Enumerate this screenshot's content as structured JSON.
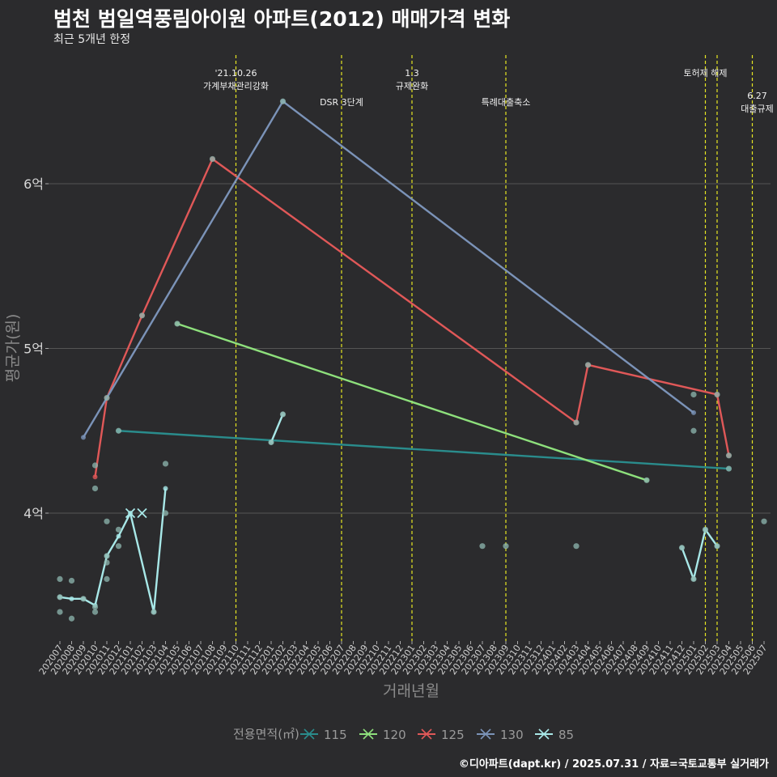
{
  "header": {
    "title": "범천 범일역풍림아이원 아파트(2012) 매매가격 변화",
    "subtitle": "최근 5개년 한정"
  },
  "footer": {
    "credit": "©디아파트(dapt.kr) / 2025.07.31 / 자료=국토교통부 실거래가"
  },
  "colors": {
    "background": "#2b2b2d",
    "grid": "#555555",
    "policy_line": "#e6e622",
    "s115": "#2a8c8c",
    "s120": "#8ee07c",
    "s125": "#e05858",
    "s130": "#7b93b8",
    "s85": "#a8e8e8",
    "scatter": "#8fb8b0"
  },
  "chart_data": {
    "type": "line",
    "title": "범천 범일역풍림아이원 아파트(2012) 매매가격 변화",
    "subtitle": "최근 5개년 한정",
    "xlabel": "거래년월",
    "ylabel": "평균가(원)",
    "ylim": [
      3.2,
      6.7
    ],
    "yticks": [
      4,
      5,
      6
    ],
    "ytick_labels": [
      "4억",
      "5억",
      "6억"
    ],
    "months": [
      "202007",
      "202008",
      "202009",
      "202010",
      "202011",
      "202012",
      "202101",
      "202102",
      "202103",
      "202104",
      "202105",
      "202106",
      "202107",
      "202108",
      "202109",
      "202110",
      "202111",
      "202112",
      "202201",
      "202202",
      "202203",
      "202204",
      "202205",
      "202206",
      "202207",
      "202208",
      "202209",
      "202210",
      "202211",
      "202212",
      "202301",
      "202302",
      "202303",
      "202304",
      "202305",
      "202306",
      "202307",
      "202308",
      "202309",
      "202310",
      "202311",
      "202312",
      "202401",
      "202402",
      "202403",
      "202404",
      "202405",
      "202406",
      "202407",
      "202408",
      "202409",
      "202410",
      "202411",
      "202412",
      "202501",
      "202502",
      "202503",
      "202504",
      "202505",
      "202506",
      "202507"
    ],
    "legend_title": "전용면적(㎡)",
    "series": [
      {
        "name": "115",
        "color_key": "s115",
        "points": [
          [
            "202012",
            4.5
          ],
          [
            "202504",
            4.27
          ]
        ]
      },
      {
        "name": "120",
        "color_key": "s120",
        "points": [
          [
            "202105",
            5.15
          ],
          [
            "202409",
            4.2
          ]
        ]
      },
      {
        "name": "125",
        "color_key": "s125",
        "points": [
          [
            "202010",
            4.22
          ],
          [
            "202011",
            4.7
          ],
          [
            "202102",
            5.2
          ],
          [
            "202108",
            6.15
          ],
          [
            "202403",
            4.55
          ],
          [
            "202404",
            4.9
          ],
          [
            "202503",
            4.72
          ],
          [
            "202504",
            4.35
          ]
        ]
      },
      {
        "name": "130",
        "color_key": "s130",
        "points": [
          [
            "202009",
            4.46
          ],
          [
            "202202",
            6.5
          ],
          [
            "202501",
            4.61
          ]
        ]
      },
      {
        "name": "85",
        "color_key": "s85",
        "points": [
          [
            "202007",
            3.49
          ],
          [
            "202008",
            3.48
          ],
          [
            "202009",
            3.48
          ],
          [
            "202010",
            3.44
          ],
          [
            "202011",
            3.74
          ],
          [
            "202012",
            3.86
          ],
          [
            "202101",
            4.0
          ],
          [
            "202103",
            3.4
          ],
          [
            "202104",
            4.15
          ]
        ]
      },
      {
        "name": "85",
        "color_key": "s85",
        "points": [
          [
            "202201",
            4.43
          ],
          [
            "202202",
            4.6
          ]
        ]
      },
      {
        "name": "85",
        "color_key": "s85",
        "points": [
          [
            "202412",
            3.79
          ],
          [
            "202501",
            3.6
          ],
          [
            "202502",
            3.9
          ],
          [
            "202503",
            3.8
          ]
        ]
      }
    ],
    "scatter": [
      [
        "202007",
        3.6
      ],
      [
        "202007",
        3.49
      ],
      [
        "202007",
        3.4
      ],
      [
        "202008",
        3.59
      ],
      [
        "202008",
        3.36
      ],
      [
        "202009",
        3.48
      ],
      [
        "202010",
        3.4
      ],
      [
        "202010",
        3.43
      ],
      [
        "202010",
        4.29
      ],
      [
        "202010",
        4.15
      ],
      [
        "202011",
        3.6
      ],
      [
        "202011",
        3.7
      ],
      [
        "202011",
        3.74
      ],
      [
        "202011",
        3.95
      ],
      [
        "202011",
        4.7
      ],
      [
        "202012",
        3.8
      ],
      [
        "202012",
        3.9
      ],
      [
        "202012",
        4.5
      ],
      [
        "202102",
        5.2
      ],
      [
        "202103",
        3.4
      ],
      [
        "202104",
        4.0
      ],
      [
        "202104",
        4.3
      ],
      [
        "202105",
        5.15
      ],
      [
        "202108",
        6.15
      ],
      [
        "202201",
        4.43
      ],
      [
        "202202",
        4.6
      ],
      [
        "202202",
        6.5
      ],
      [
        "202307",
        3.8
      ],
      [
        "202309",
        3.8
      ],
      [
        "202403",
        3.8
      ],
      [
        "202403",
        4.55
      ],
      [
        "202404",
        4.9
      ],
      [
        "202409",
        4.2
      ],
      [
        "202412",
        3.79
      ],
      [
        "202501",
        3.6
      ],
      [
        "202501",
        4.5
      ],
      [
        "202501",
        4.72
      ],
      [
        "202502",
        3.9
      ],
      [
        "202503",
        3.8
      ],
      [
        "202503",
        4.72
      ],
      [
        "202504",
        4.27
      ],
      [
        "202504",
        4.35
      ],
      [
        "202507",
        3.95
      ]
    ],
    "cross_markers": [
      [
        "202101",
        4.0,
        "s85"
      ],
      [
        "202102",
        4.0,
        "s85"
      ]
    ],
    "policy_events": [
      {
        "month": "202110",
        "lines": [
          "'21.10.26",
          "가계부채관리강화"
        ],
        "row": 0
      },
      {
        "month": "202207",
        "lines": [
          "DSR 3단계"
        ],
        "row": 1
      },
      {
        "month": "202301",
        "lines": [
          "1.3",
          "규제완화"
        ],
        "row": 0
      },
      {
        "month": "202309",
        "lines": [
          "특례대출축소"
        ],
        "row": 1
      },
      {
        "month": "202502",
        "lines": [
          "토허제 해제"
        ],
        "row": 0
      },
      {
        "month": "202503",
        "lines": [],
        "row": 0
      },
      {
        "month": "202506",
        "lines": [
          "6.27",
          "대출규제"
        ],
        "row": 2
      }
    ]
  }
}
